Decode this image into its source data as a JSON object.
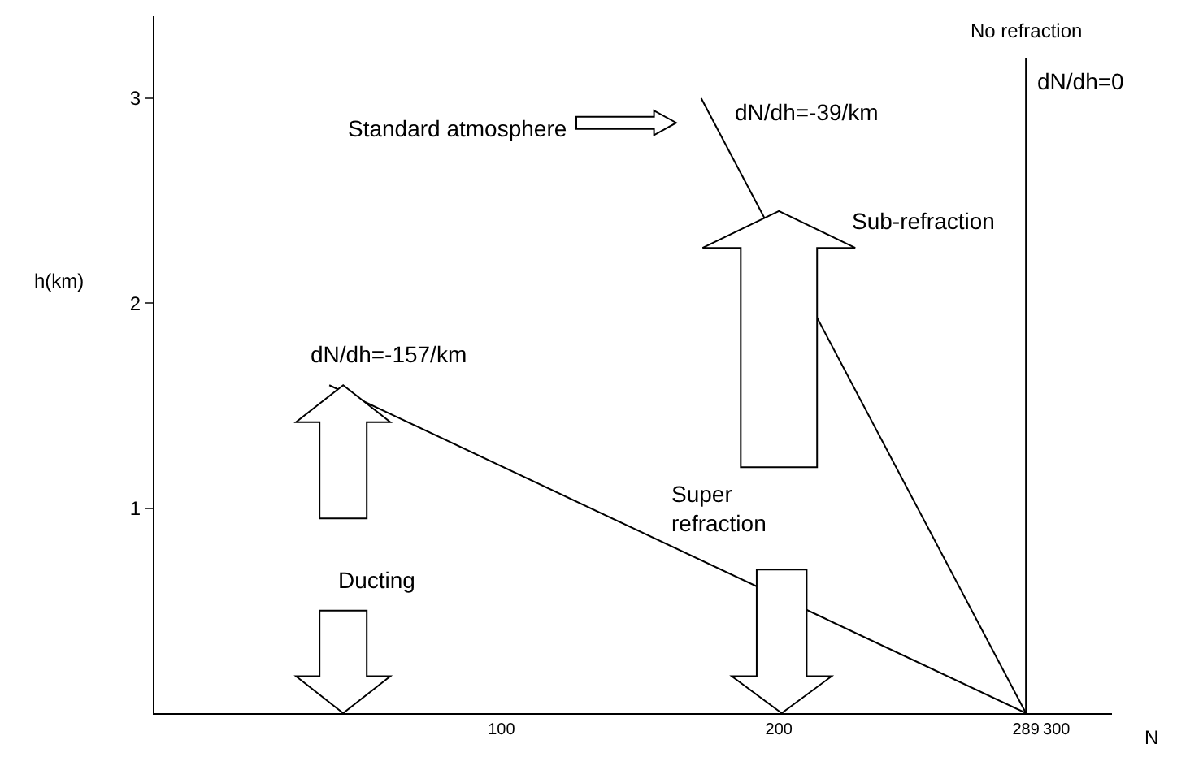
{
  "chart_data": {
    "type": "line",
    "xlabel": "N",
    "ylabel": "h(km)",
    "series": [
      {
        "color": "#000000",
        "x": [
          289,
          172
        ],
        "values": [
          0,
          3
        ]
      },
      {
        "color": "#000000",
        "x": [
          289,
          38
        ],
        "values": [
          0,
          1.6
        ]
      }
    ],
    "ref_lines": [
      {
        "axis": "x",
        "value": 289,
        "color": "#000000",
        "line_style": "solid"
      }
    ],
    "xlim": [
      -25,
      320
    ],
    "ylim": [
      0,
      3.4
    ],
    "xticks": [
      100,
      200,
      289,
      300
    ],
    "yticks": [
      1,
      2,
      3
    ],
    "marker": "none",
    "line_style": "solid",
    "annotations": [
      "No refraction",
      "dN/dh=0",
      "dN/dh=-39/km",
      "Standard atmosphere",
      "Sub-refraction",
      "dN/dh=-157/km",
      "Super\nrefraction",
      "Ducting"
    ]
  }
}
